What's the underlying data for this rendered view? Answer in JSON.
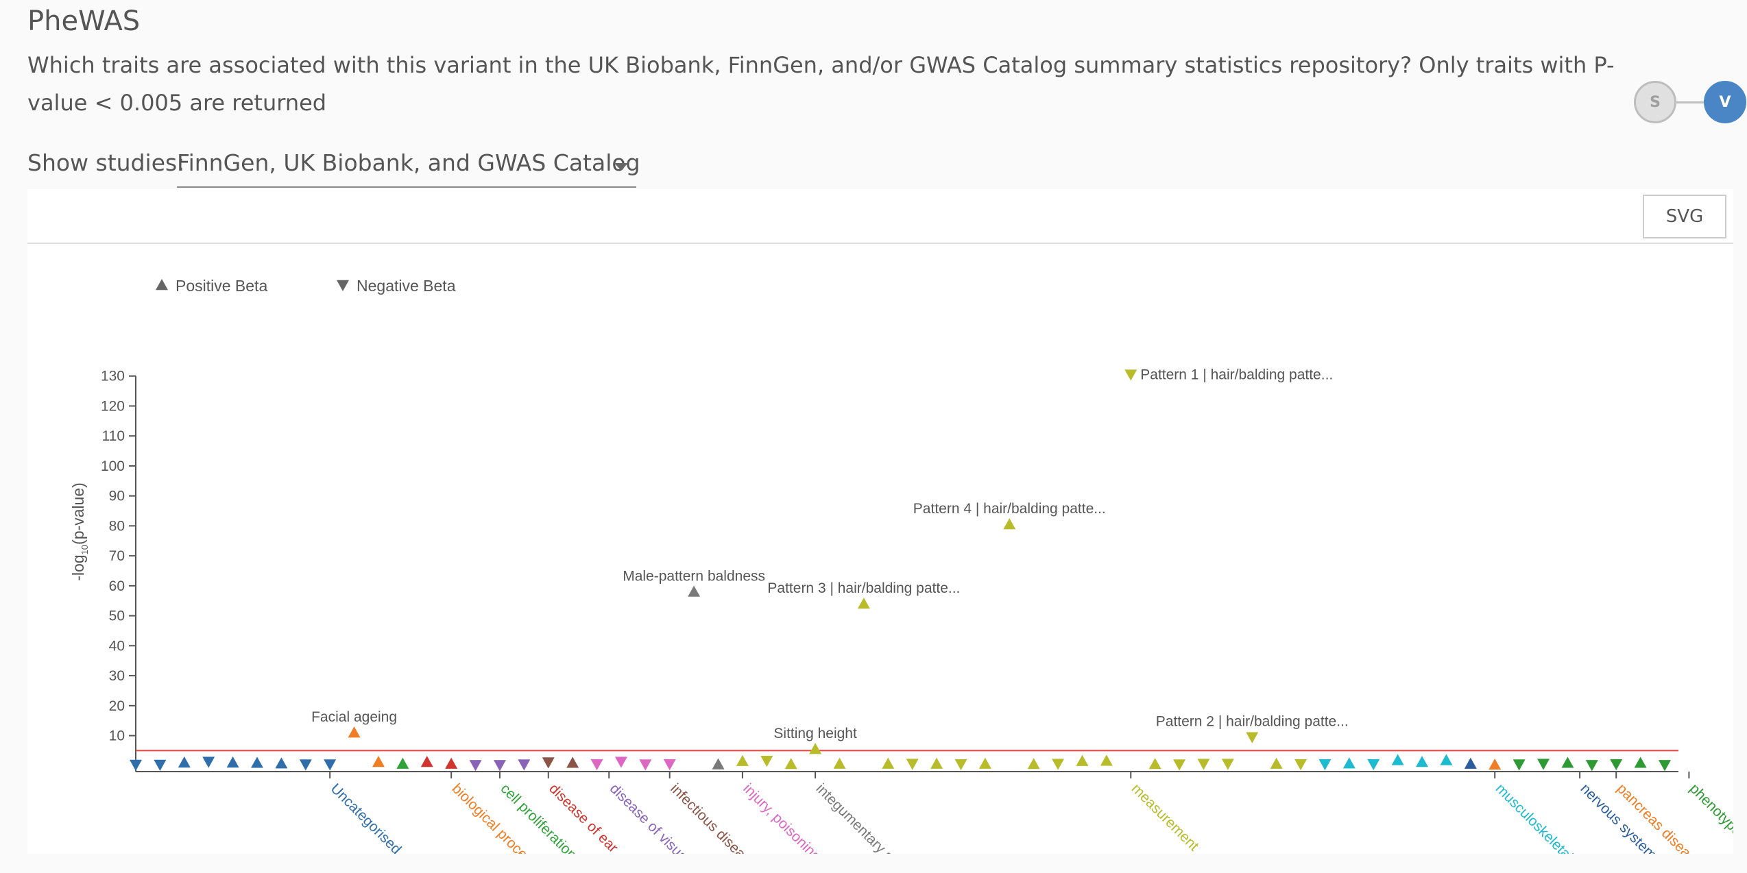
{
  "page": {
    "title": "PheWAS",
    "question": "Which traits are associated with this variant in the UK Biobank, FinnGen, and/or GWAS Catalog summary statistics repository? Only traits with P-value < 0.005 are returned",
    "steps": [
      "S",
      "V"
    ],
    "study_label": "Show studies:",
    "study_value": "FinnGen, UK Biobank, and GWAS Catalog",
    "svg_button": "SVG"
  },
  "chart_data": {
    "type": "scatter",
    "ylabel_pre": "-log",
    "ylabel_sub": "10",
    "ylabel_post": "(p-value)",
    "ylim": [
      -2,
      132
    ],
    "yticks": [
      10,
      20,
      30,
      40,
      50,
      60,
      70,
      80,
      90,
      100,
      110,
      120,
      130
    ],
    "threshold": 5,
    "threshold_color": "#e8463c",
    "grid": false,
    "legend_position": "top-left",
    "legend": [
      {
        "label": "Positive Beta",
        "direction": "up"
      },
      {
        "label": "Negative Beta",
        "direction": "down"
      }
    ],
    "categories": [
      {
        "name": "Uncategorised",
        "color": "#2f6eaa",
        "tick": 8
      },
      {
        "name": "biological process",
        "color": "#f07d24",
        "tick": 13
      },
      {
        "name": "cell proliferation disorder",
        "color": "#30a23a",
        "tick": 15
      },
      {
        "name": "disease of ear",
        "color": "#d0352e",
        "tick": 17
      },
      {
        "name": "disease of visual system",
        "color": "#8a63b8",
        "tick": 19.5
      },
      {
        "name": "infectious disease",
        "color": "#8b5446",
        "tick": 22
      },
      {
        "name": "injury, poisoning or other co",
        "color": "#dc68c4",
        "tick": 25
      },
      {
        "name": "integumentary system dise",
        "color": "#7a7a7a",
        "tick": 28
      },
      {
        "name": "measurement",
        "color": "#b8bb2a",
        "tick": 41
      },
      {
        "name": "musculoskeletal or connec",
        "color": "#1ebbd0",
        "tick": 56
      },
      {
        "name": "nervous system disease",
        "color": "#2a5d9c",
        "tick": 59.5
      },
      {
        "name": "pancreas disease",
        "color": "#f07d24",
        "tick": 61
      },
      {
        "name": "phenotype",
        "color": "#2e9a33",
        "tick": 64
      }
    ],
    "points": [
      {
        "x": 0,
        "y": 0.3,
        "dir": "down",
        "cat": 0
      },
      {
        "x": 1,
        "y": 0.3,
        "dir": "down",
        "cat": 0
      },
      {
        "x": 2,
        "y": 1.0,
        "dir": "up",
        "cat": 0
      },
      {
        "x": 3,
        "y": 1.3,
        "dir": "down",
        "cat": 0
      },
      {
        "x": 4,
        "y": 1.0,
        "dir": "up",
        "cat": 0
      },
      {
        "x": 5,
        "y": 0.9,
        "dir": "up",
        "cat": 0
      },
      {
        "x": 6,
        "y": 0.7,
        "dir": "up",
        "cat": 0
      },
      {
        "x": 7,
        "y": 0.4,
        "dir": "down",
        "cat": 0
      },
      {
        "x": 8,
        "y": 0.4,
        "dir": "down",
        "cat": 0
      },
      {
        "x": 9,
        "y": 11,
        "dir": "up",
        "cat": 1,
        "label": "Facial ageing"
      },
      {
        "x": 10,
        "y": 1.2,
        "dir": "up",
        "cat": 1
      },
      {
        "x": 11,
        "y": 0.6,
        "dir": "up",
        "cat": 2
      },
      {
        "x": 12,
        "y": 1.2,
        "dir": "up",
        "cat": 3
      },
      {
        "x": 13,
        "y": 0.6,
        "dir": "up",
        "cat": 3
      },
      {
        "x": 14,
        "y": 0.2,
        "dir": "down",
        "cat": 4
      },
      {
        "x": 15,
        "y": 0.2,
        "dir": "down",
        "cat": 4
      },
      {
        "x": 16,
        "y": 0.4,
        "dir": "down",
        "cat": 4
      },
      {
        "x": 17,
        "y": 1.1,
        "dir": "down",
        "cat": 5
      },
      {
        "x": 18,
        "y": 0.9,
        "dir": "up",
        "cat": 5
      },
      {
        "x": 19,
        "y": 0.5,
        "dir": "down",
        "cat": 6
      },
      {
        "x": 20,
        "y": 1.3,
        "dir": "down",
        "cat": 6
      },
      {
        "x": 21,
        "y": 0.4,
        "dir": "down",
        "cat": 6
      },
      {
        "x": 22,
        "y": 0.5,
        "dir": "down",
        "cat": 6
      },
      {
        "x": 23,
        "y": 58,
        "dir": "up",
        "cat": 7,
        "label": "Male-pattern baldness"
      },
      {
        "x": 24,
        "y": 0.4,
        "dir": "up",
        "cat": 7
      },
      {
        "x": 25,
        "y": 1.5,
        "dir": "up",
        "cat": 8
      },
      {
        "x": 26,
        "y": 1.6,
        "dir": "down",
        "cat": 8
      },
      {
        "x": 27,
        "y": 0.5,
        "dir": "up",
        "cat": 8
      },
      {
        "x": 28,
        "y": 5.5,
        "dir": "up",
        "cat": 8,
        "label": "Sitting height"
      },
      {
        "x": 29,
        "y": 0.6,
        "dir": "up",
        "cat": 8
      },
      {
        "x": 30,
        "y": 54,
        "dir": "up",
        "cat": 8,
        "label": "Pattern 3 | hair/balding patte..."
      },
      {
        "x": 31,
        "y": 0.6,
        "dir": "up",
        "cat": 8
      },
      {
        "x": 32,
        "y": 0.6,
        "dir": "down",
        "cat": 8
      },
      {
        "x": 33,
        "y": 0.6,
        "dir": "up",
        "cat": 8
      },
      {
        "x": 34,
        "y": 0.5,
        "dir": "down",
        "cat": 8
      },
      {
        "x": 35,
        "y": 0.6,
        "dir": "up",
        "cat": 8
      },
      {
        "x": 36,
        "y": 80.5,
        "dir": "up",
        "cat": 8,
        "label": "Pattern 4 | hair/balding patte..."
      },
      {
        "x": 37,
        "y": 0.5,
        "dir": "up",
        "cat": 8
      },
      {
        "x": 38,
        "y": 0.6,
        "dir": "down",
        "cat": 8
      },
      {
        "x": 39,
        "y": 1.5,
        "dir": "up",
        "cat": 8
      },
      {
        "x": 40,
        "y": 1.6,
        "dir": "up",
        "cat": 8
      },
      {
        "x": 41,
        "y": 130.5,
        "dir": "down",
        "cat": 8,
        "label": "Pattern 1 | hair/balding patte..."
      },
      {
        "x": 42,
        "y": 0.5,
        "dir": "up",
        "cat": 8
      },
      {
        "x": 43,
        "y": 0.4,
        "dir": "down",
        "cat": 8
      },
      {
        "x": 44,
        "y": 0.6,
        "dir": "down",
        "cat": 8
      },
      {
        "x": 45,
        "y": 0.6,
        "dir": "down",
        "cat": 8
      },
      {
        "x": 46,
        "y": 9.5,
        "dir": "down",
        "cat": 8,
        "label": "Pattern 2 | hair/balding patte..."
      },
      {
        "x": 47,
        "y": 0.6,
        "dir": "up",
        "cat": 8
      },
      {
        "x": 48,
        "y": 0.5,
        "dir": "down",
        "cat": 8
      },
      {
        "x": 49,
        "y": 0.5,
        "dir": "down",
        "cat": 9
      },
      {
        "x": 50,
        "y": 0.7,
        "dir": "up",
        "cat": 9
      },
      {
        "x": 51,
        "y": 0.5,
        "dir": "down",
        "cat": 9
      },
      {
        "x": 52,
        "y": 1.8,
        "dir": "up",
        "cat": 9
      },
      {
        "x": 53,
        "y": 1.2,
        "dir": "up",
        "cat": 9
      },
      {
        "x": 54,
        "y": 1.8,
        "dir": "up",
        "cat": 9
      },
      {
        "x": 55,
        "y": 0.6,
        "dir": "up",
        "cat": 10
      },
      {
        "x": 56,
        "y": 0.3,
        "dir": "up",
        "cat": 11
      },
      {
        "x": 57,
        "y": 0.4,
        "dir": "down",
        "cat": 12
      },
      {
        "x": 58,
        "y": 0.6,
        "dir": "down",
        "cat": 12
      },
      {
        "x": 59,
        "y": 0.9,
        "dir": "up",
        "cat": 12
      },
      {
        "x": 60,
        "y": 0.2,
        "dir": "down",
        "cat": 12
      },
      {
        "x": 61,
        "y": 0.5,
        "dir": "down",
        "cat": 12
      },
      {
        "x": 62,
        "y": 0.9,
        "dir": "up",
        "cat": 12
      },
      {
        "x": 63,
        "y": 0.2,
        "dir": "down",
        "cat": 12
      }
    ]
  }
}
